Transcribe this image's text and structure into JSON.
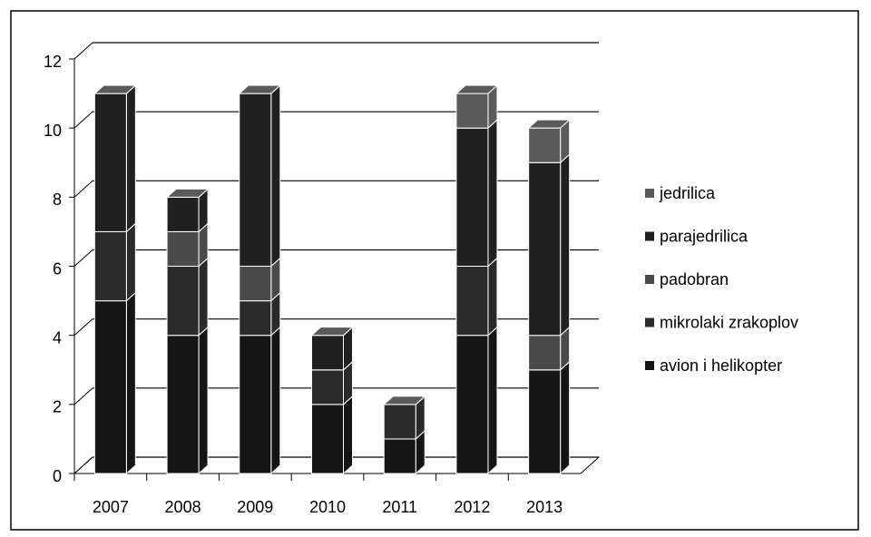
{
  "chart_data": {
    "type": "bar3d_stacked",
    "categories": [
      "2007",
      "2008",
      "2009",
      "2010",
      "2011",
      "2012",
      "2013"
    ],
    "series": [
      {
        "name": "avion i helikopter",
        "color": "#151515",
        "values": [
          5,
          4,
          4,
          2,
          1,
          4,
          3
        ]
      },
      {
        "name": "mikrolaki zrakoplov",
        "color": "#2a2a2a",
        "values": [
          2,
          2,
          1,
          1,
          1,
          2,
          0
        ]
      },
      {
        "name": "padobran",
        "color": "#4a4a4a",
        "values": [
          0,
          1,
          1,
          0,
          0,
          0,
          1
        ]
      },
      {
        "name": "parajedrilica",
        "color": "#202020",
        "values": [
          4,
          1,
          5,
          1,
          0,
          4,
          5
        ]
      },
      {
        "name": "jedrilica",
        "color": "#5a5a5a",
        "values": [
          0,
          0,
          0,
          0,
          0,
          1,
          1
        ]
      }
    ],
    "ylim": [
      0,
      12
    ],
    "yticks": [
      0,
      2,
      4,
      6,
      8,
      10,
      12
    ],
    "grid": true
  }
}
